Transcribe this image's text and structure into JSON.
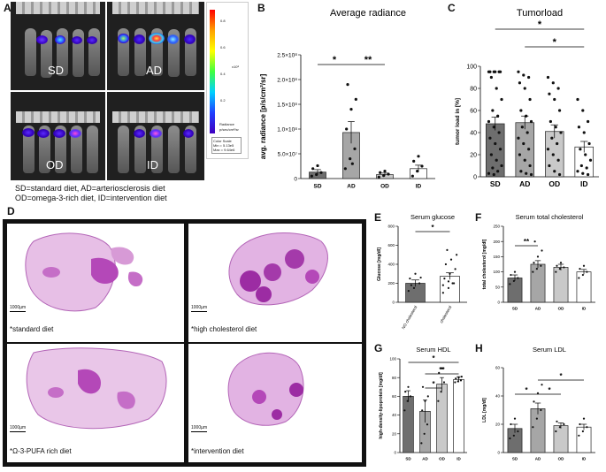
{
  "panel_letters": {
    "a": "A",
    "b": "B",
    "c": "C",
    "d": "D",
    "e": "E",
    "f": "F",
    "g": "G",
    "h": "H"
  },
  "panel_a": {
    "images": [
      {
        "label": "SD",
        "id": "IVIS_ID_1"
      },
      {
        "label": "AD",
        "id": "IVIS_ID_2"
      },
      {
        "label": "OD",
        "id": "IVIS_ID_3"
      },
      {
        "label": "ID",
        "id": "IVIS_ID_4"
      }
    ],
    "colorbar": {
      "title": "Radiance",
      "units": "p/sec/cm²/sr",
      "scale_exp": "x10⁸",
      "ticks": [
        "0.8",
        "0.6",
        "0.4",
        "0.2"
      ],
      "color_scale_lines": [
        "Color Scale",
        "Min = 5.13e5",
        "Max = 9.64e6"
      ]
    },
    "caption": [
      "SD=standard diet, AD=arteriosclerosis diet",
      "OD=omega-3-rich diet, ID=intervention diet"
    ]
  },
  "panel_d": {
    "scale_label": "1000µm",
    "captions": [
      "*standard diet",
      "*high cholesterol diet",
      "*Ω-3-PUFA rich diet",
      "*intervention diet"
    ]
  },
  "chart_data": [
    {
      "id": "B",
      "type": "bar",
      "title": "Average radiance",
      "ylabel": "avg. radiance [p/s/cm²/sr]",
      "categories": [
        "SD",
        "AD",
        "OD",
        "ID"
      ],
      "values": [
        13000000,
        93000000,
        8000000,
        20000000
      ],
      "errors": [
        5000000,
        22000000,
        3000000,
        7000000
      ],
      "ylim": [
        0,
        250000000
      ],
      "yticks": [
        0,
        50000000,
        100000000,
        150000000,
        200000000,
        250000000
      ],
      "ytick_labels": [
        "0",
        "5.0×10⁷",
        "1.0×10⁸",
        "1.5×10⁸",
        "2.0×10⁸",
        "2.5×10⁸"
      ],
      "fills": [
        "#6e6e6e",
        "#a6a6a6",
        "#c9c9c9",
        "#ffffff"
      ],
      "significance": [
        {
          "from": 0,
          "to": 1,
          "label": "*"
        },
        {
          "from": 1,
          "to": 2,
          "label": "**"
        }
      ],
      "points": [
        [
          5000000,
          8000000,
          12000000,
          20000000,
          26000000
        ],
        [
          20000000,
          40000000,
          60000000,
          100000000,
          140000000,
          160000000,
          190000000,
          30000000
        ],
        [
          3000000,
          6000000,
          9000000,
          12000000,
          15000000
        ],
        [
          5000000,
          15000000,
          25000000,
          35000000,
          45000000
        ]
      ]
    },
    {
      "id": "C",
      "type": "bar",
      "title": "Tumorload",
      "ylabel": "tumor load in [%]",
      "categories": [
        "SD",
        "AD",
        "OD",
        "ID"
      ],
      "values": [
        48,
        49,
        41,
        27
      ],
      "errors": [
        6,
        6,
        6,
        5
      ],
      "ylim": [
        0,
        100
      ],
      "yticks": [
        0,
        20,
        40,
        60,
        80,
        100
      ],
      "ytick_labels": [
        "0",
        "20",
        "40",
        "60",
        "80",
        "100"
      ],
      "fills": [
        "#6e6e6e",
        "#a6a6a6",
        "#c9c9c9",
        "#ffffff"
      ],
      "significance": [
        {
          "from": 0,
          "to": 3,
          "label": "*"
        },
        {
          "from": 1,
          "to": 3,
          "label": "*"
        }
      ],
      "points": [
        [
          95,
          95,
          95,
          95,
          95,
          95,
          90,
          80,
          70,
          60,
          55,
          50,
          45,
          40,
          35,
          30,
          25,
          20,
          15,
          10,
          8,
          5,
          3,
          2
        ],
        [
          95,
          92,
          90,
          85,
          80,
          70,
          60,
          55,
          50,
          45,
          40,
          35,
          30,
          25,
          20,
          15,
          10,
          5,
          3,
          2
        ],
        [
          90,
          85,
          80,
          75,
          70,
          60,
          50,
          45,
          40,
          35,
          30,
          25,
          20,
          15,
          10,
          5,
          2
        ],
        [
          70,
          60,
          50,
          45,
          40,
          30,
          25,
          20,
          15,
          10,
          8,
          5,
          3,
          2
        ]
      ]
    },
    {
      "id": "E",
      "type": "bar",
      "title": "Serum glucose",
      "ylabel": "Glucose [mg/dl]",
      "categories": [
        "NO cholesterol",
        "cholesterol"
      ],
      "values": [
        200,
        275
      ],
      "errors": [
        35,
        35
      ],
      "ylim": [
        0,
        800
      ],
      "yticks": [
        0,
        200,
        400,
        600,
        800
      ],
      "ytick_labels": [
        "0",
        "200",
        "400",
        "600",
        "800"
      ],
      "fills": [
        "#6e6e6e",
        "#ffffff"
      ],
      "significance": [
        {
          "from": 0,
          "to": 1,
          "label": "*"
        }
      ],
      "points": [
        [
          120,
          150,
          200,
          250,
          300,
          260,
          180
        ],
        [
          100,
          150,
          200,
          250,
          300,
          350,
          400,
          450,
          500,
          550,
          200,
          180,
          220
        ]
      ]
    },
    {
      "id": "F",
      "type": "bar",
      "title": "Serum total cholesterol",
      "ylabel": "total cholesterol [mg/dl]",
      "categories": [
        "SD",
        "AD",
        "OD",
        "ID"
      ],
      "values": [
        80,
        125,
        115,
        100
      ],
      "errors": [
        10,
        12,
        10,
        8
      ],
      "ylim": [
        0,
        250
      ],
      "yticks": [
        0,
        50,
        100,
        150,
        200,
        250
      ],
      "ytick_labels": [
        "0",
        "50",
        "100",
        "150",
        "200",
        "250"
      ],
      "fills": [
        "#6e6e6e",
        "#a6a6a6",
        "#c9c9c9",
        "#ffffff"
      ],
      "significance": [
        {
          "from": 0,
          "to": 1,
          "label": "**"
        }
      ],
      "points": [
        [
          60,
          70,
          80,
          90,
          100
        ],
        [
          100,
          110,
          120,
          130,
          150,
          170,
          200
        ],
        [
          100,
          110,
          115,
          120,
          130
        ],
        [
          80,
          90,
          100,
          110,
          120
        ]
      ]
    },
    {
      "id": "G",
      "type": "bar",
      "title": "Serum HDL",
      "ylabel": "high-density-lipoprotein [mg/dl]",
      "categories": [
        "SD",
        "AD",
        "OD",
        "ID"
      ],
      "values": [
        60,
        44,
        73,
        78
      ],
      "errors": [
        6,
        12,
        7,
        3
      ],
      "ylim": [
        0,
        100
      ],
      "yticks": [
        0,
        20,
        40,
        60,
        80,
        100
      ],
      "ytick_labels": [
        "0",
        "20",
        "40",
        "60",
        "80",
        "100"
      ],
      "fills": [
        "#6e6e6e",
        "#a6a6a6",
        "#c9c9c9",
        "#ffffff"
      ],
      "significance": [
        {
          "from": 0,
          "to": 3,
          "label": "*"
        },
        {
          "from": 1,
          "to": 3,
          "label": "**"
        },
        {
          "from": 1,
          "to": 2,
          "label": "*"
        }
      ],
      "points": [
        [
          45,
          55,
          60,
          65,
          70
        ],
        [
          10,
          20,
          30,
          45,
          55,
          60,
          70
        ],
        [
          55,
          65,
          75,
          85,
          90
        ],
        [
          75,
          76,
          77,
          79,
          80,
          81
        ]
      ]
    },
    {
      "id": "H",
      "type": "bar",
      "title": "Serum LDL",
      "ylabel": "LDL [mg/dl]",
      "categories": [
        "SD",
        "AD",
        "OD",
        "ID"
      ],
      "values": [
        17,
        31,
        19,
        18
      ],
      "errors": [
        3,
        4,
        2,
        2
      ],
      "ylim": [
        0,
        60
      ],
      "yticks": [
        0,
        20,
        40,
        60
      ],
      "ytick_labels": [
        "0",
        "20",
        "40",
        "60"
      ],
      "fills": [
        "#6e6e6e",
        "#a6a6a6",
        "#c9c9c9",
        "#ffffff"
      ],
      "significance": [
        {
          "from": 0,
          "to": 1,
          "label": "*"
        },
        {
          "from": 1,
          "to": 2,
          "label": "*"
        },
        {
          "from": 1,
          "to": 3,
          "label": "*"
        }
      ],
      "points": [
        [
          10,
          12,
          15,
          20,
          24
        ],
        [
          18,
          24,
          30,
          36,
          42,
          48
        ],
        [
          15,
          18,
          20,
          22
        ],
        [
          12,
          15,
          18,
          20,
          24
        ]
      ]
    }
  ]
}
